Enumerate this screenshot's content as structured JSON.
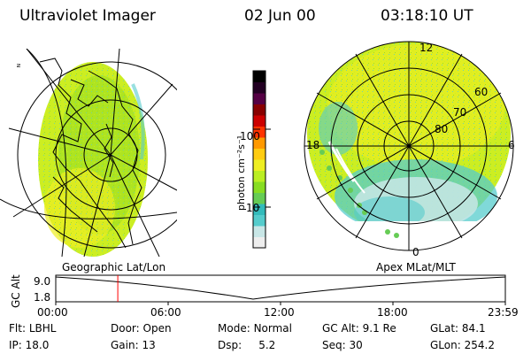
{
  "header": {
    "instrument": "Ultraviolet Imager",
    "date": "02 Jun 00",
    "time": "03:18:10 UT"
  },
  "left_panel": {
    "caption": "Geographic Lat/Lon"
  },
  "right_panel": {
    "caption": "Apex MLat/MLT",
    "lat_labels": [
      "60",
      "70",
      "80"
    ],
    "mlt_labels": {
      "top": "12",
      "left": "18",
      "right": "6",
      "bottom": "0"
    }
  },
  "colorbar": {
    "unit_label": "photon cm⁻²s⁻¹",
    "tick_labels": [
      "100",
      "10"
    ],
    "colors": [
      "#eeeeee",
      "#c8e6e6",
      "#55cccc",
      "#33bbbb",
      "#66cc55",
      "#88dd22",
      "#bbee22",
      "#eeee22",
      "#ffcc11",
      "#ff9900",
      "#ff3300",
      "#cc0000",
      "#880000",
      "#550044",
      "#220022",
      "#000000"
    ]
  },
  "timeline": {
    "ylabel": "GC Alt",
    "ymax": "9.0",
    "ymin": "1.8",
    "x_ticks": [
      "00:00",
      "06:00",
      "12:00",
      "18:00",
      "23:59"
    ],
    "current_time_fraction": 0.138
  },
  "status": {
    "row1": [
      {
        "label": "Flt:",
        "value": "LBHL"
      },
      {
        "label": "Door:",
        "value": "Open"
      },
      {
        "label": "Mode:",
        "value": "Normal"
      },
      {
        "label": "GC Alt:",
        "value": "9.1 Re"
      },
      {
        "label": "GLat:",
        "value": "84.1"
      }
    ],
    "row2": [
      {
        "label": "IP:",
        "value": "18.0"
      },
      {
        "label": "Gain:",
        "value": "13"
      },
      {
        "label": "Dsp:",
        "value": "5.2"
      },
      {
        "label": "Seq:",
        "value": "30"
      },
      {
        "label": "GLon:",
        "value": "254.2"
      }
    ]
  }
}
